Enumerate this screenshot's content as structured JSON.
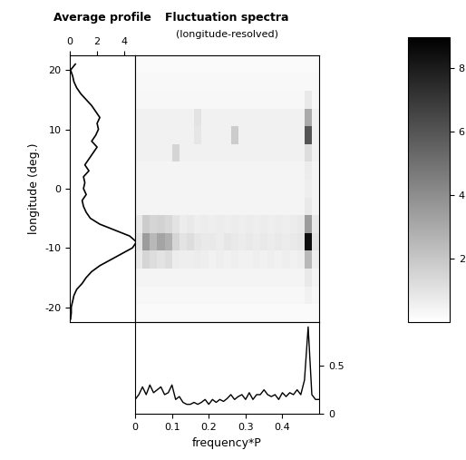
{
  "chart_data": [
    {
      "type": "line",
      "title": "Average profile",
      "ylabel": "longitude (deg.)",
      "y": [
        -22,
        -21,
        -20,
        -19,
        -18,
        -17,
        -16,
        -15,
        -14,
        -13,
        -12,
        -11,
        -10,
        -9,
        -8,
        -7,
        -6,
        -5,
        -4,
        -3,
        -2,
        -1,
        0,
        1,
        2,
        3,
        4,
        5,
        6,
        7,
        8,
        9,
        10,
        11,
        12,
        13,
        14,
        15,
        16,
        17,
        18,
        19,
        20,
        21
      ],
      "values": [
        0.05,
        0.1,
        0.1,
        0.2,
        0.3,
        0.5,
        0.9,
        1.2,
        1.6,
        2.2,
        3.0,
        3.8,
        4.6,
        4.9,
        4.4,
        3.3,
        2.2,
        1.5,
        1.2,
        1.0,
        0.9,
        1.2,
        1.0,
        1.1,
        1.0,
        1.4,
        1.1,
        1.4,
        1.7,
        2.0,
        1.6,
        1.9,
        2.1,
        2.0,
        2.2,
        1.9,
        1.6,
        1.2,
        0.8,
        0.5,
        0.3,
        0.2,
        0.05,
        0.4
      ],
      "color": "#000000",
      "xlim": [
        0,
        4.8
      ],
      "xticks": [
        0,
        2,
        4
      ],
      "ylim": [
        -22.5,
        22.5
      ],
      "yticks": [
        -20,
        -10,
        0,
        10,
        20
      ]
    },
    {
      "type": "heatmap",
      "title": "Fluctuation spectra",
      "subtitle": "(longitude-resolved)",
      "x_edges": [
        0,
        0.02,
        0.04,
        0.06,
        0.08,
        0.1,
        0.12,
        0.14,
        0.16,
        0.18,
        0.2,
        0.22,
        0.24,
        0.26,
        0.28,
        0.3,
        0.32,
        0.34,
        0.36,
        0.38,
        0.4,
        0.42,
        0.44,
        0.46,
        0.48,
        0.5
      ],
      "y_edges": [
        -22.5,
        -19.5,
        -16.5,
        -13.5,
        -10.5,
        -7.5,
        -4.5,
        -1.5,
        1.5,
        4.5,
        7.5,
        10.5,
        13.5,
        16.5,
        19.5,
        22.5
      ],
      "cells": [
        [
          0.2,
          0.2,
          0.2,
          0.2,
          0.2,
          0.2,
          0.2,
          0.2,
          0.2,
          0.2,
          0.2,
          0.2,
          0.2,
          0.2,
          0.2,
          0.2,
          0.2,
          0.2,
          0.2,
          0.2,
          0.2,
          0.2,
          0.2,
          0.2,
          0.2
        ],
        [
          0.3,
          0.3,
          0.3,
          0.3,
          0.3,
          0.3,
          0.3,
          0.3,
          0.3,
          0.3,
          0.3,
          0.3,
          0.3,
          0.3,
          0.3,
          0.3,
          0.3,
          0.3,
          0.3,
          0.3,
          0.3,
          0.3,
          0.3,
          0.5,
          0.3
        ],
        [
          0.4,
          0.4,
          0.4,
          0.4,
          0.4,
          0.4,
          0.4,
          0.4,
          0.4,
          0.4,
          0.4,
          0.4,
          0.4,
          0.4,
          0.4,
          0.4,
          0.4,
          0.4,
          0.4,
          0.4,
          0.4,
          0.4,
          0.4,
          0.8,
          0.4
        ],
        [
          0.8,
          1.5,
          1.2,
          1.0,
          1.2,
          0.7,
          0.6,
          0.6,
          0.7,
          0.6,
          0.5,
          0.6,
          0.5,
          0.6,
          0.5,
          0.5,
          0.6,
          0.5,
          0.6,
          0.5,
          0.6,
          0.5,
          0.6,
          2.5,
          0.6
        ],
        [
          1.0,
          3.5,
          2.5,
          3.2,
          2.8,
          1.5,
          1.0,
          1.2,
          0.9,
          0.8,
          0.8,
          0.7,
          0.9,
          0.8,
          0.7,
          0.8,
          0.7,
          0.8,
          0.7,
          0.8,
          0.7,
          0.8,
          0.9,
          8.5,
          1.0
        ],
        [
          0.8,
          1.8,
          1.5,
          1.6,
          1.4,
          1.0,
          0.7,
          0.8,
          0.6,
          0.7,
          0.6,
          0.7,
          0.6,
          0.7,
          0.6,
          0.7,
          0.6,
          0.7,
          0.6,
          0.7,
          0.6,
          0.7,
          0.8,
          3.5,
          0.8
        ],
        [
          0.4,
          0.4,
          0.4,
          0.4,
          0.4,
          0.4,
          0.4,
          0.4,
          0.4,
          0.4,
          0.4,
          0.4,
          0.4,
          0.4,
          0.4,
          0.4,
          0.4,
          0.4,
          0.4,
          0.4,
          0.4,
          0.4,
          0.4,
          0.8,
          0.4
        ],
        [
          0.4,
          0.4,
          0.4,
          0.4,
          0.4,
          0.4,
          0.4,
          0.4,
          0.4,
          0.4,
          0.4,
          0.4,
          0.4,
          0.4,
          0.4,
          0.4,
          0.4,
          0.4,
          0.4,
          0.4,
          0.4,
          0.4,
          0.4,
          0.6,
          0.4
        ],
        [
          0.4,
          0.4,
          0.4,
          0.4,
          0.4,
          0.4,
          0.4,
          0.4,
          0.4,
          0.4,
          0.4,
          0.4,
          0.4,
          0.4,
          0.4,
          0.4,
          0.4,
          0.4,
          0.4,
          0.4,
          0.4,
          0.4,
          0.4,
          0.7,
          0.4
        ],
        [
          0.5,
          0.5,
          0.5,
          0.5,
          0.5,
          1.5,
          0.5,
          0.5,
          0.5,
          0.5,
          0.5,
          0.5,
          0.5,
          0.5,
          0.5,
          0.5,
          0.5,
          0.5,
          0.5,
          0.5,
          0.5,
          0.5,
          0.5,
          1.2,
          0.5
        ],
        [
          0.5,
          0.5,
          0.5,
          0.5,
          0.5,
          0.5,
          0.5,
          0.5,
          0.9,
          0.5,
          0.5,
          0.5,
          0.5,
          1.8,
          0.5,
          0.5,
          0.5,
          0.5,
          0.5,
          0.5,
          0.5,
          0.5,
          0.5,
          6.0,
          0.5
        ],
        [
          0.5,
          0.5,
          0.5,
          0.5,
          0.5,
          0.5,
          0.5,
          0.5,
          1.0,
          0.5,
          0.5,
          0.5,
          0.5,
          0.5,
          0.5,
          0.5,
          0.5,
          0.5,
          0.5,
          0.5,
          0.5,
          0.5,
          0.5,
          3.0,
          0.5
        ],
        [
          0.3,
          0.3,
          0.3,
          0.3,
          0.3,
          0.3,
          0.3,
          0.3,
          0.3,
          0.3,
          0.3,
          0.3,
          0.3,
          0.3,
          0.3,
          0.3,
          0.3,
          0.3,
          0.3,
          0.3,
          0.3,
          0.3,
          0.3,
          0.8,
          0.3
        ],
        [
          0.25,
          0.25,
          0.25,
          0.25,
          0.25,
          0.25,
          0.25,
          0.25,
          0.25,
          0.25,
          0.25,
          0.25,
          0.25,
          0.25,
          0.25,
          0.25,
          0.25,
          0.25,
          0.25,
          0.25,
          0.25,
          0.25,
          0.25,
          0.25,
          0.25
        ],
        [
          0.2,
          0.2,
          0.2,
          0.2,
          0.2,
          0.2,
          0.2,
          0.2,
          0.2,
          0.2,
          0.2,
          0.2,
          0.2,
          0.2,
          0.2,
          0.2,
          0.2,
          0.2,
          0.2,
          0.2,
          0.2,
          0.2,
          0.2,
          0.2,
          0.2
        ]
      ],
      "colorbar_range": [
        0,
        9
      ],
      "colorbar_ticks": [
        2,
        4,
        6,
        8
      ],
      "xlim": [
        0,
        0.5
      ],
      "ylim": [
        -22.5,
        22.5
      ],
      "tick_labels": false
    },
    {
      "type": "line",
      "xlabel": "frequency*P",
      "x": [
        0,
        0.01,
        0.02,
        0.03,
        0.04,
        0.05,
        0.06,
        0.07,
        0.08,
        0.09,
        0.1,
        0.11,
        0.12,
        0.13,
        0.14,
        0.15,
        0.16,
        0.17,
        0.18,
        0.19,
        0.2,
        0.21,
        0.22,
        0.23,
        0.24,
        0.25,
        0.26,
        0.27,
        0.28,
        0.29,
        0.3,
        0.31,
        0.32,
        0.33,
        0.34,
        0.35,
        0.36,
        0.37,
        0.38,
        0.39,
        0.4,
        0.41,
        0.42,
        0.43,
        0.44,
        0.45,
        0.46,
        0.47,
        0.48,
        0.49,
        0.5
      ],
      "values": [
        0.15,
        0.2,
        0.28,
        0.2,
        0.3,
        0.22,
        0.25,
        0.28,
        0.2,
        0.22,
        0.3,
        0.15,
        0.18,
        0.12,
        0.1,
        0.1,
        0.12,
        0.1,
        0.12,
        0.15,
        0.1,
        0.15,
        0.12,
        0.15,
        0.13,
        0.16,
        0.2,
        0.15,
        0.18,
        0.2,
        0.15,
        0.22,
        0.15,
        0.2,
        0.2,
        0.25,
        0.2,
        0.18,
        0.2,
        0.15,
        0.22,
        0.18,
        0.22,
        0.2,
        0.25,
        0.2,
        0.35,
        0.9,
        0.2,
        0.15,
        0.15
      ],
      "color": "#000000",
      "xlim": [
        0,
        0.5
      ],
      "xticks": [
        0,
        0.1,
        0.2,
        0.3,
        0.4
      ],
      "ylim": [
        0,
        0.95
      ],
      "yticks": [
        0,
        0.5
      ]
    }
  ]
}
